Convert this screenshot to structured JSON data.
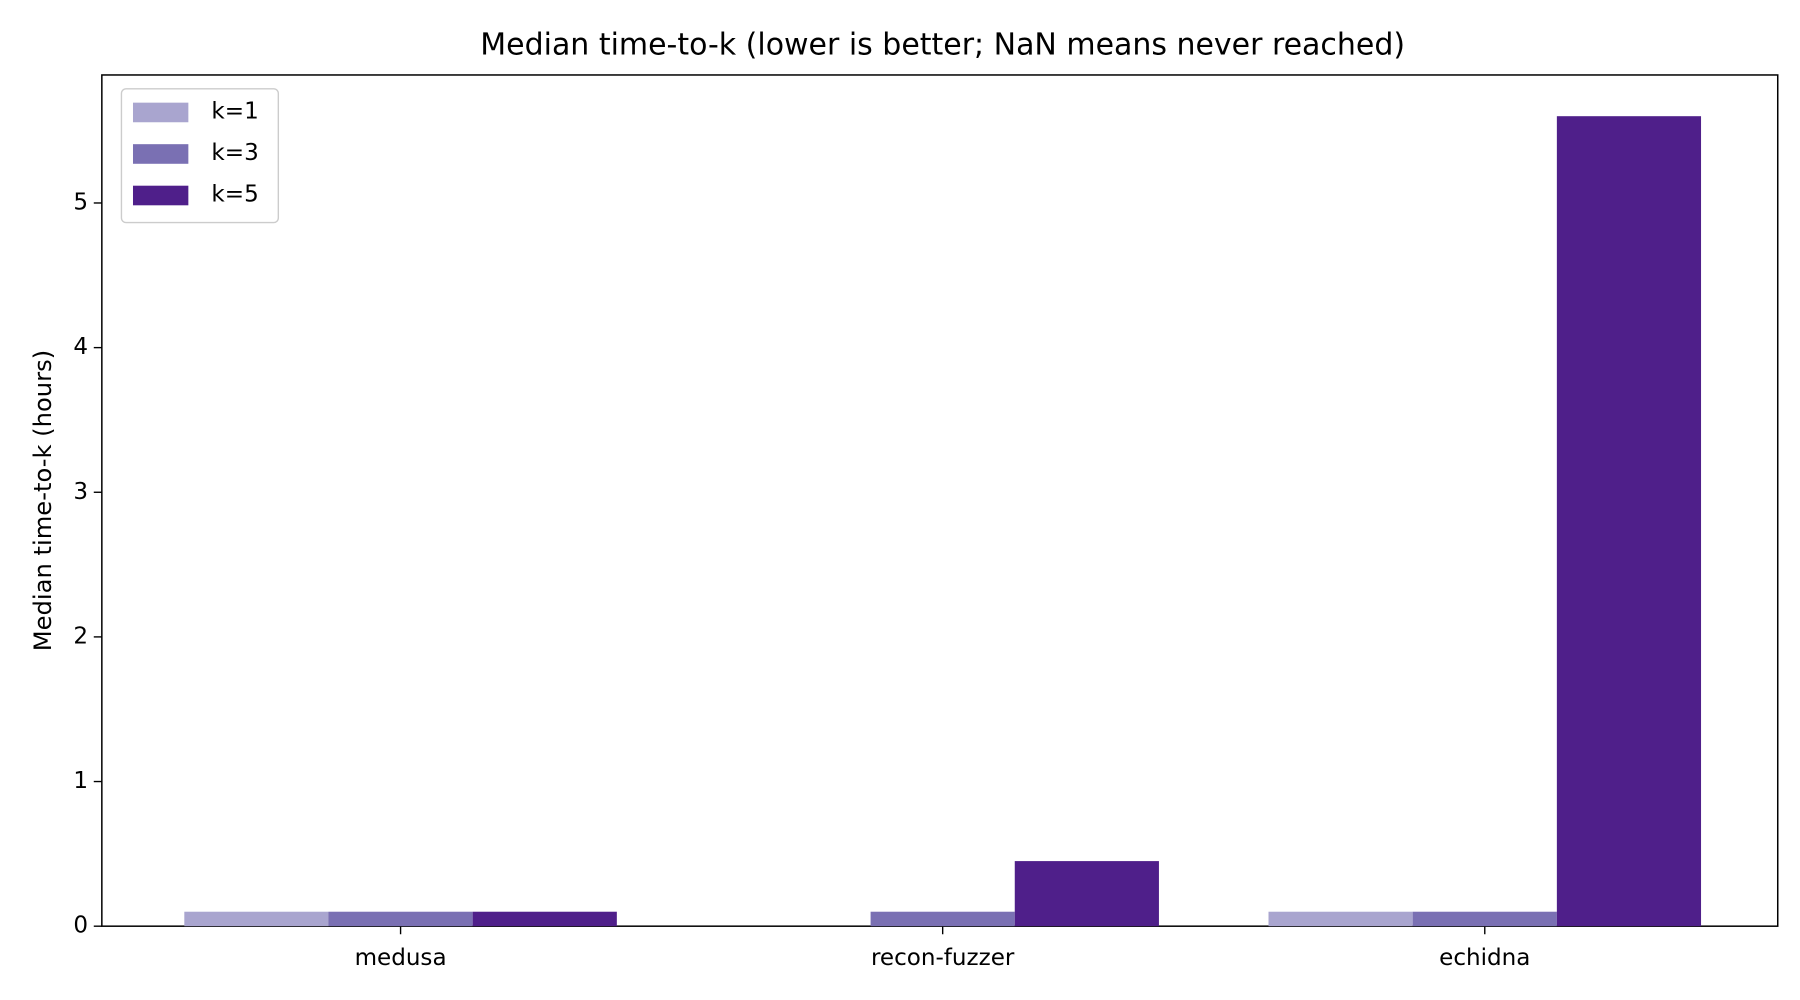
{
  "chart_data": {
    "type": "bar",
    "title": "Median time-to-k (lower is better; NaN means never reached)",
    "y_label": "Median time-to-k (hours)",
    "categories": [
      "medusa",
      "recon-fuzzer",
      "echidna"
    ],
    "series": [
      {
        "name": "k=1",
        "color": "#a9a5cf",
        "values": [
          0.1,
          null,
          0.1
        ]
      },
      {
        "name": "k=3",
        "color": "#7a70b3",
        "values": [
          0.1,
          0.1,
          0.1
        ]
      },
      {
        "name": "k=5",
        "color": "#4f1f8a",
        "values": [
          0.1,
          0.45,
          5.6
        ]
      }
    ],
    "ylim": [
      0,
      5.885
    ],
    "yticks": [
      0,
      1,
      2,
      3,
      4,
      5
    ],
    "grid": false,
    "legend": "upper-left"
  }
}
